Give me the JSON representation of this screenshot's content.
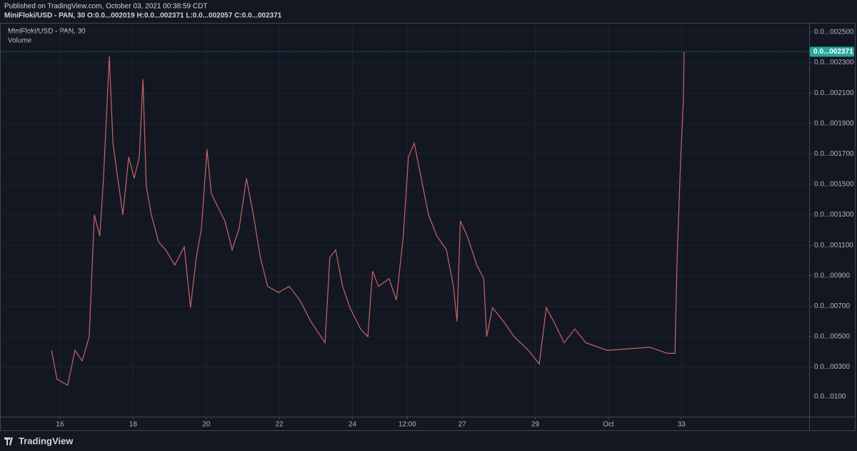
{
  "header": {
    "published": "Published on TradingView.com, October 03, 2021 00:38:59 CDT",
    "ohlc": "MiniFloki/USD - PAN, 30  O:0.0...002019 H:0.0...002371 L:0.0...002057 C:0.0...002371"
  },
  "footer": "TradingView",
  "chart_data": {
    "type": "line",
    "title": "MiniFloki/USD - PAN, 30",
    "subtitle": "Volume",
    "color": "#c8646a",
    "x": [
      15.77,
      15.92,
      16.21,
      16.41,
      16.61,
      16.8,
      16.94,
      17.09,
      17.19,
      17.35,
      17.45,
      17.58,
      17.72,
      17.88,
      18.03,
      18.17,
      18.27,
      18.36,
      18.5,
      18.7,
      18.89,
      19.14,
      19.4,
      19.57,
      19.73,
      19.87,
      20.02,
      20.14,
      20.32,
      20.51,
      20.71,
      20.9,
      21.1,
      21.29,
      21.48,
      21.68,
      21.98,
      22.27,
      22.56,
      22.86,
      23.25,
      23.38,
      23.54,
      23.73,
      23.93,
      24.22,
      24.42,
      24.55,
      24.71,
      25.0,
      25.2,
      25.39,
      25.53,
      25.69,
      25.88,
      26.08,
      26.31,
      26.57,
      26.76,
      26.86,
      26.95,
      27.14,
      27.4,
      27.59,
      27.67,
      27.83,
      28.13,
      28.42,
      28.81,
      29.11,
      29.3,
      29.5,
      29.79,
      30.08,
      30.38,
      30.96,
      31.55,
      32.13,
      32.62,
      32.82,
      32.88,
      32.97,
      33.05,
      33.07
    ],
    "values": [
      410,
      220,
      180,
      410,
      340,
      500,
      1300,
      1160,
      1540,
      2340,
      1770,
      1540,
      1300,
      1680,
      1540,
      1680,
      2190,
      1490,
      1300,
      1120,
      1070,
      970,
      1090,
      690,
      1020,
      1210,
      1730,
      1440,
      1350,
      1260,
      1070,
      1210,
      1540,
      1300,
      1020,
      830,
      790,
      830,
      740,
      600,
      460,
      1020,
      1070,
      830,
      690,
      550,
      500,
      930,
      830,
      880,
      740,
      1160,
      1680,
      1770,
      1540,
      1300,
      1160,
      1070,
      830,
      600,
      1260,
      1160,
      970,
      880,
      500,
      690,
      600,
      500,
      410,
      320,
      690,
      600,
      460,
      550,
      460,
      410,
      420,
      430,
      390,
      390,
      1020,
      1630,
      2050,
      2371
    ],
    "last_price": {
      "value": 2371,
      "label": "0.0...002371"
    },
    "xlim": [
      14.36,
      36.49
    ],
    "xticks": [
      16,
      18,
      20,
      22,
      24,
      {
        "value": 25.5,
        "label": "12:00"
      },
      27,
      29,
      {
        "value": 31,
        "label": "Oct"
      },
      33
    ],
    "ylim": [
      -26,
      2556
    ],
    "yticks": [
      {
        "value": 2500,
        "label": "0.0...002500"
      },
      {
        "value": 2300,
        "label": "0.0...002300"
      },
      {
        "value": 2100,
        "label": "0.0...002100"
      },
      {
        "value": 1900,
        "label": "0.0...001900"
      },
      {
        "value": 1700,
        "label": "0.0...001700"
      },
      {
        "value": 1500,
        "label": "0.0...001500"
      },
      {
        "value": 1300,
        "label": "0.0...001300"
      },
      {
        "value": 1100,
        "label": "0.0...001100"
      },
      {
        "value": 900,
        "label": "0.0...00900"
      },
      {
        "value": 700,
        "label": "0.0...00700"
      },
      {
        "value": 500,
        "label": "0.0...00500"
      },
      {
        "value": 300,
        "label": "0.0...00300"
      }
    ],
    "volume_tick": "0.0...0100",
    "grid": true
  }
}
